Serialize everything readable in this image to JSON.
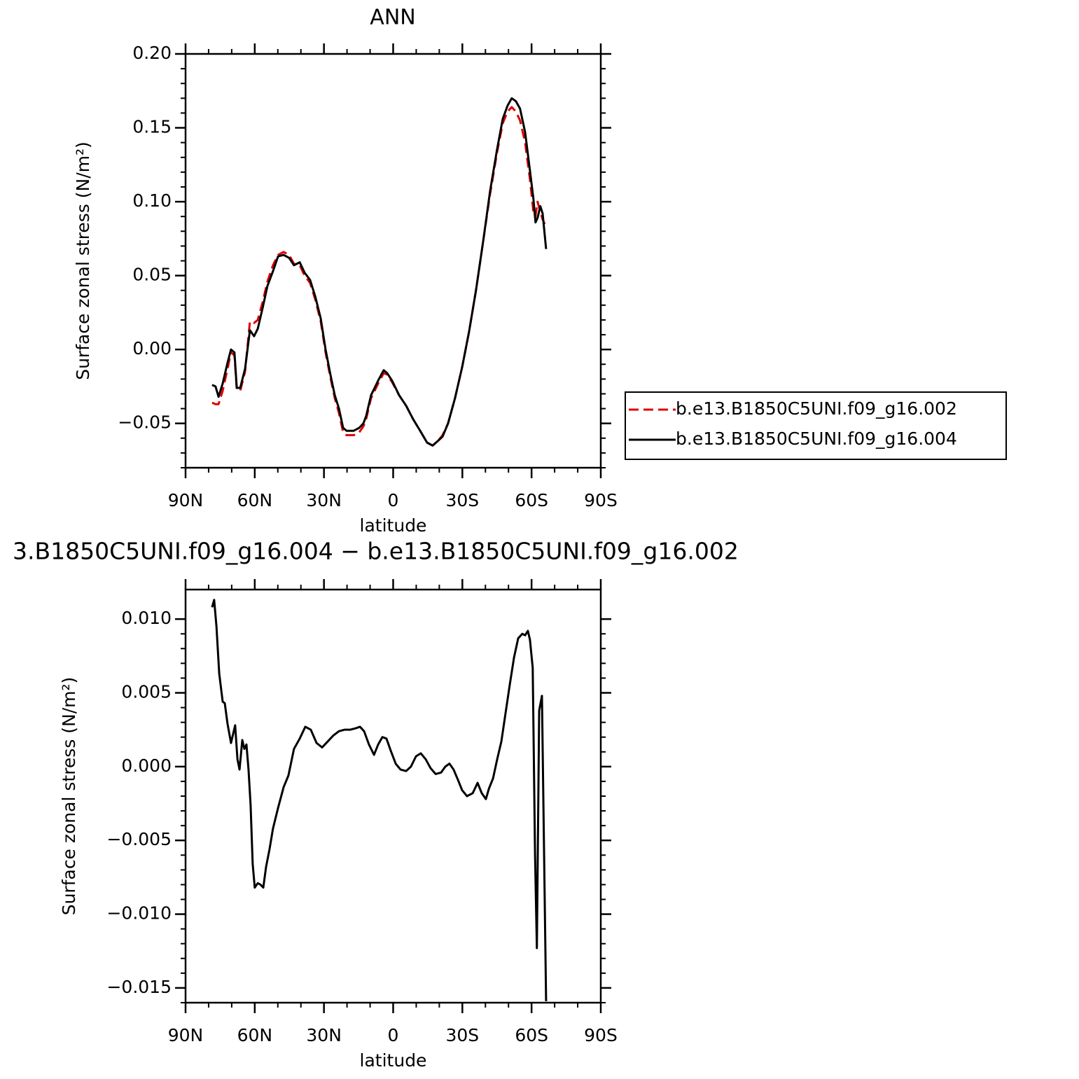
{
  "chart_data": [
    {
      "type": "line",
      "title": "ANN",
      "xlabel": "latitude",
      "ylabel": "Surface zonal stress (N/m²)",
      "xlim": [
        90,
        -90
      ],
      "xticks": [
        {
          "value": 90,
          "label": "90N"
        },
        {
          "value": 60,
          "label": "60N"
        },
        {
          "value": 30,
          "label": "30N"
        },
        0,
        {
          "value": -30,
          "label": "30S"
        },
        {
          "value": -60,
          "label": "60S"
        },
        {
          "value": -90,
          "label": "90S"
        }
      ],
      "ylim": [
        -0.08,
        0.2
      ],
      "yticks": [
        {
          "value": 0.2,
          "label": "0.20"
        },
        0.15,
        {
          "value": 0.1,
          "label": "0.10"
        },
        0.05,
        {
          "value": 0,
          "label": "0.00"
        },
        {
          "value": -0.05,
          "label": "−0.05"
        }
      ],
      "legend": "right",
      "x": [
        78.5,
        77,
        75.7,
        73.9,
        71.8,
        70.3,
        68.8,
        67.8,
        66.3,
        64.2,
        62.1,
        60.3,
        58.7,
        56.6,
        54.5,
        52.1,
        49.9,
        47.5,
        45.1,
        43,
        40.5,
        38.4,
        36,
        33.8,
        31.4,
        29.3,
        27.2,
        25.3,
        23.5,
        21.7,
        20.2,
        17.1,
        14.7,
        12.9,
        11.7,
        9.6,
        6.5,
        4.1,
        2.6,
        0.5,
        -2.6,
        -5.6,
        -8.6,
        -11.7,
        -14.7,
        -17.1,
        -19.3,
        -21.4,
        -23.8,
        -26.8,
        -29.9,
        -32.9,
        -35.9,
        -39,
        -42,
        -45,
        -47.5,
        -49.6,
        -51.4,
        -53.2,
        -55,
        -57.2,
        -59.3,
        -60.8,
        -61.7,
        -62.6,
        -63.8,
        -64.8,
        -66.3
      ],
      "series": [
        {
          "name": "b.e13.B1850C5UNI.f09_g16.002",
          "color": "#e00000",
          "linestyle": "dashed",
          "values": [
            -0.036,
            -0.037,
            -0.037,
            -0.028,
            -0.013,
            -0.002,
            -0.004,
            -0.027,
            -0.028,
            -0.015,
            0.019,
            0.018,
            0.02,
            0.032,
            0.046,
            0.057,
            0.064,
            0.066,
            0.064,
            0.058,
            0.057,
            0.05,
            0.045,
            0.034,
            0.019,
            -0.002,
            -0.019,
            -0.033,
            -0.043,
            -0.056,
            -0.058,
            -0.058,
            -0.056,
            -0.052,
            -0.047,
            -0.033,
            -0.023,
            -0.016,
            -0.017,
            -0.022,
            -0.031,
            -0.038,
            -0.047,
            -0.055,
            -0.063,
            -0.065,
            -0.062,
            -0.058,
            -0.05,
            -0.033,
            -0.012,
            0.012,
            0.04,
            0.073,
            0.105,
            0.133,
            0.153,
            0.161,
            0.164,
            0.161,
            0.155,
            0.14,
            0.115,
            0.093,
            0.09,
            0.1,
            0.093,
            0.088,
            0.083
          ]
        },
        {
          "name": "b.e13.B1850C5UNI.f09_g16.004",
          "color": "#000000",
          "linestyle": "solid",
          "values": [
            -0.024,
            -0.025,
            -0.032,
            -0.023,
            -0.009,
            0,
            -0.002,
            -0.026,
            -0.026,
            -0.013,
            0.013,
            0.009,
            0.014,
            0.028,
            0.043,
            0.053,
            0.063,
            0.064,
            0.062,
            0.057,
            0.059,
            0.052,
            0.047,
            0.036,
            0.021,
            0,
            -0.017,
            -0.031,
            -0.04,
            -0.053,
            -0.055,
            -0.055,
            -0.053,
            -0.05,
            -0.045,
            -0.031,
            -0.021,
            -0.014,
            -0.016,
            -0.021,
            -0.031,
            -0.038,
            -0.047,
            -0.055,
            -0.063,
            -0.065,
            -0.062,
            -0.059,
            -0.05,
            -0.033,
            -0.012,
            0.012,
            0.04,
            0.073,
            0.107,
            0.135,
            0.156,
            0.165,
            0.17,
            0.168,
            0.163,
            0.147,
            0.121,
            0.102,
            0.086,
            0.089,
            0.097,
            0.092,
            0.068
          ]
        }
      ]
    },
    {
      "type": "line",
      "title": "3.B1850C5UNI.f09_g16.004 − b.e13.B1850C5UNI.f09_g16.002",
      "xlabel": "latitude",
      "ylabel": "Surface zonal stress (N/m²)",
      "xlim": [
        90,
        -90
      ],
      "xticks": [
        {
          "value": 90,
          "label": "90N"
        },
        {
          "value": 60,
          "label": "60N"
        },
        {
          "value": 30,
          "label": "30N"
        },
        0,
        {
          "value": -30,
          "label": "30S"
        },
        {
          "value": -60,
          "label": "60S"
        },
        {
          "value": -90,
          "label": "90S"
        }
      ],
      "ylim": [
        -0.016,
        0.012
      ],
      "yticks": [
        {
          "value": 0.01,
          "label": "0.010"
        },
        0.005,
        {
          "value": 0,
          "label": "0.000"
        },
        {
          "value": -0.005,
          "label": "−0.005"
        },
        {
          "value": -0.01,
          "label": "−0.010"
        },
        {
          "value": -0.015,
          "label": "−0.015"
        }
      ],
      "color": "#000000",
      "x": [
        78.5,
        77.6,
        76.6,
        75.4,
        73.9,
        73,
        71.8,
        70.3,
        68.5,
        67.5,
        66.6,
        65.4,
        64.5,
        63.6,
        62.7,
        61.8,
        60.9,
        60,
        58.7,
        57.5,
        56.3,
        55.1,
        53.6,
        52.1,
        49.9,
        47.5,
        45.4,
        43,
        40.5,
        38.1,
        35.7,
        33.2,
        30.8,
        28.4,
        26,
        23.5,
        21.1,
        18.7,
        16.2,
        14.4,
        12.6,
        10.5,
        8.3,
        6.5,
        4.7,
        2.9,
        1.1,
        -1.1,
        -3.2,
        -5.6,
        -7.7,
        -9.9,
        -12,
        -14.1,
        -16.2,
        -18.4,
        -20.8,
        -22.6,
        -24.4,
        -26.2,
        -28.1,
        -29.9,
        -32,
        -34.5,
        -36.6,
        -38.4,
        -40.2,
        -41.5,
        -43.3,
        -45.1,
        -46.9,
        -48.7,
        -50.5,
        -52.4,
        -54.2,
        -56,
        -57.2,
        -58.4,
        -59.3,
        -60.5,
        -61.5,
        -62.3,
        -63.3,
        -64.5,
        -65.4,
        -66.3
      ],
      "values": [
        0.0108,
        0.0113,
        0.0095,
        0.0063,
        0.0044,
        0.0043,
        0.0029,
        0.0016,
        0.0028,
        0.0005,
        -0.0002,
        0.0018,
        0.0012,
        0.0015,
        -0.0002,
        -0.0026,
        -0.0066,
        -0.0082,
        -0.0079,
        -0.008,
        -0.0082,
        -0.0068,
        -0.0056,
        -0.0042,
        -0.0028,
        -0.0014,
        -0.0006,
        0.0012,
        0.0019,
        0.0027,
        0.0025,
        0.0016,
        0.0013,
        0.0017,
        0.0021,
        0.0024,
        0.0025,
        0.0025,
        0.0026,
        0.0027,
        0.0024,
        0.0015,
        0.0008,
        0.0015,
        0.002,
        0.0019,
        0.0011,
        0.0002,
        -0.0002,
        -0.0003,
        0,
        0.0007,
        0.0009,
        0.0005,
        -0.0001,
        -0.0005,
        -0.0004,
        0,
        0.0002,
        -0.0002,
        -0.0009,
        -0.0016,
        -0.002,
        -0.0018,
        -0.0011,
        -0.0018,
        -0.0022,
        -0.0015,
        -0.0008,
        0.0005,
        0.0017,
        0.0036,
        0.0055,
        0.0074,
        0.0087,
        0.009,
        0.0089,
        0.0092,
        0.0086,
        0.0067,
        -0.0059,
        -0.0123,
        0.0038,
        0.0048,
        -0.0056,
        -0.0159
      ]
    }
  ]
}
